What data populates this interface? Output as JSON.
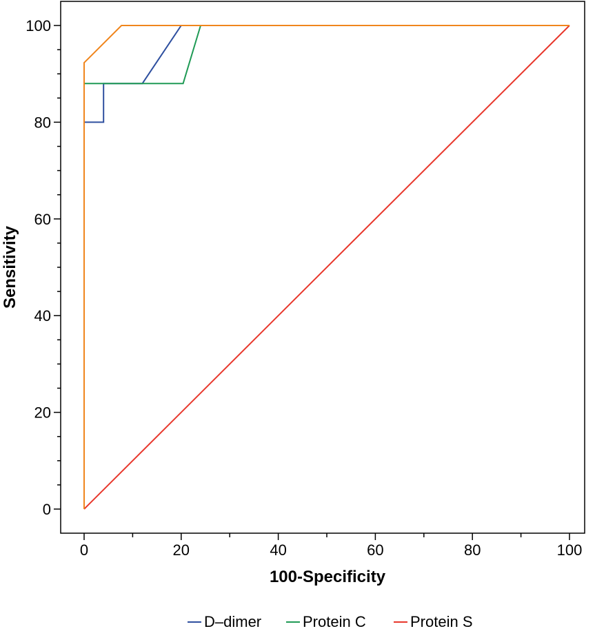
{
  "chart_data": {
    "type": "line",
    "title": "",
    "xlabel": "100-Specificity",
    "ylabel": "Sensitivity",
    "xlim": [
      0,
      100
    ],
    "ylim": [
      0,
      100
    ],
    "x_ticks": [
      0,
      20,
      40,
      60,
      80,
      100
    ],
    "y_ticks": [
      0,
      20,
      40,
      60,
      80,
      100
    ],
    "grid": false,
    "legend_placement": "bottom",
    "series": [
      {
        "name": "D–dimer",
        "color": "#2e4f9f",
        "legend": true,
        "points": [
          [
            0,
            0
          ],
          [
            0,
            80
          ],
          [
            4,
            80
          ],
          [
            4,
            88
          ],
          [
            12,
            88
          ],
          [
            20,
            100
          ],
          [
            100,
            100
          ]
        ]
      },
      {
        "name": "Protein C",
        "color": "#1f9a55",
        "legend": true,
        "points": [
          [
            0,
            0
          ],
          [
            0,
            88
          ],
          [
            20.4,
            88
          ],
          [
            24,
            100
          ],
          [
            100,
            100
          ]
        ]
      },
      {
        "name": "Protein S",
        "color": "#e8362b",
        "legend": true,
        "points": [
          [
            0,
            0
          ],
          [
            100,
            100
          ]
        ]
      },
      {
        "name": "",
        "color": "#f0851c",
        "legend": false,
        "points": [
          [
            0,
            0
          ],
          [
            0,
            92.3
          ],
          [
            7.7,
            100
          ],
          [
            100,
            100
          ]
        ]
      }
    ]
  }
}
